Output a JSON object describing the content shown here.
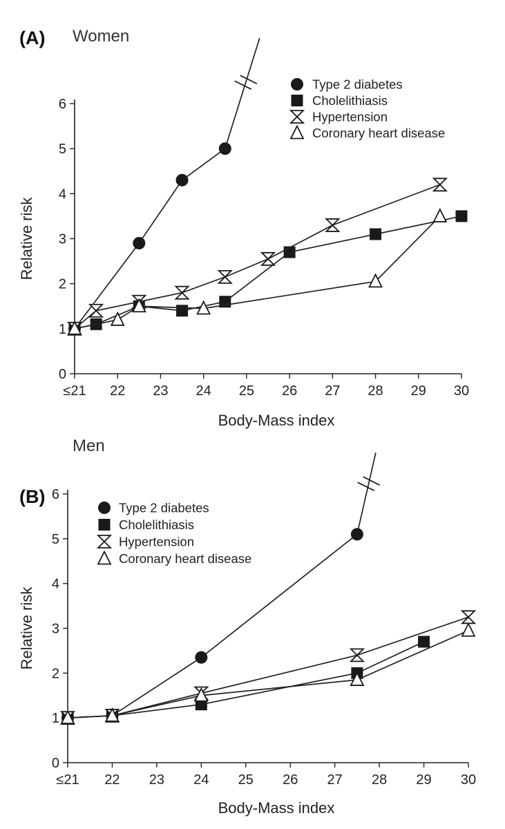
{
  "chart_data": [
    {
      "type": "line",
      "panel_label": "(A)",
      "title": "Women",
      "xlabel": "Body-Mass index",
      "ylabel": "Relative risk",
      "xlim": [
        21,
        30
      ],
      "ylim": [
        0,
        6
      ],
      "x_ticks": [
        21,
        22,
        23,
        24,
        25,
        26,
        27,
        28,
        29,
        30
      ],
      "x_tick_labels": [
        "≤21",
        "22",
        "23",
        "24",
        "25",
        "26",
        "27",
        "28",
        "29",
        "30"
      ],
      "y_ticks": [
        0,
        1,
        2,
        3,
        4,
        5,
        6
      ],
      "y_tick_labels": [
        "0",
        "1",
        "2",
        "3",
        "4",
        "5",
        "6"
      ],
      "grid": false,
      "legend_position": "top-right",
      "series": [
        {
          "name": "Type 2 diabetes",
          "marker": "filled-circle",
          "x": [
            21,
            22.5,
            23.5,
            24.5
          ],
          "y": [
            1.0,
            2.9,
            4.3,
            5.0
          ],
          "continues_off_scale": true
        },
        {
          "name": "Cholelithiasis",
          "marker": "filled-square",
          "x": [
            21,
            21.5,
            22.5,
            23.5,
            24.5,
            26,
            28,
            30
          ],
          "y": [
            1.0,
            1.1,
            1.5,
            1.4,
            1.6,
            2.7,
            3.1,
            3.5
          ]
        },
        {
          "name": "Hypertension",
          "marker": "hourglass",
          "x": [
            21,
            21.5,
            22.5,
            23.5,
            24.5,
            25.5,
            27,
            29.5
          ],
          "y": [
            1.0,
            1.4,
            1.6,
            1.8,
            2.15,
            2.55,
            3.3,
            4.2
          ]
        },
        {
          "name": "Coronary heart disease",
          "marker": "open-triangle",
          "x": [
            21,
            22,
            22.5,
            24,
            28,
            29.5
          ],
          "y": [
            1.0,
            1.2,
            1.5,
            1.45,
            2.05,
            3.5
          ]
        }
      ]
    },
    {
      "type": "line",
      "panel_label": "(B)",
      "title": "Men",
      "xlabel": "Body-Mass index",
      "ylabel": "Relative risk",
      "xlim": [
        21,
        30
      ],
      "ylim": [
        0,
        6
      ],
      "x_ticks": [
        21,
        22,
        23,
        24,
        25,
        26,
        27,
        28,
        29,
        30
      ],
      "x_tick_labels": [
        "≤21",
        "22",
        "23",
        "24",
        "25",
        "26",
        "27",
        "28",
        "29",
        "30"
      ],
      "y_ticks": [
        0,
        1,
        2,
        3,
        4,
        5,
        6
      ],
      "y_tick_labels": [
        "0",
        "1",
        "2",
        "3",
        "4",
        "5",
        "6"
      ],
      "grid": false,
      "legend_position": "top-left",
      "series": [
        {
          "name": "Type 2 diabetes",
          "marker": "filled-circle",
          "x": [
            21,
            22,
            24,
            27.5
          ],
          "y": [
            1.0,
            1.05,
            2.35,
            5.1
          ],
          "continues_off_scale": true
        },
        {
          "name": "Cholelithiasis",
          "marker": "filled-square",
          "x": [
            21,
            22,
            24,
            27.5,
            29
          ],
          "y": [
            1.0,
            1.05,
            1.3,
            2.0,
            2.7
          ]
        },
        {
          "name": "Hypertension",
          "marker": "hourglass",
          "x": [
            21,
            22,
            24,
            27.5,
            30
          ],
          "y": [
            1.0,
            1.05,
            1.55,
            2.4,
            3.25
          ]
        },
        {
          "name": "Coronary heart disease",
          "marker": "open-triangle",
          "x": [
            21,
            22,
            24,
            27.5,
            30
          ],
          "y": [
            1.0,
            1.05,
            1.5,
            1.85,
            2.95
          ]
        }
      ]
    }
  ]
}
